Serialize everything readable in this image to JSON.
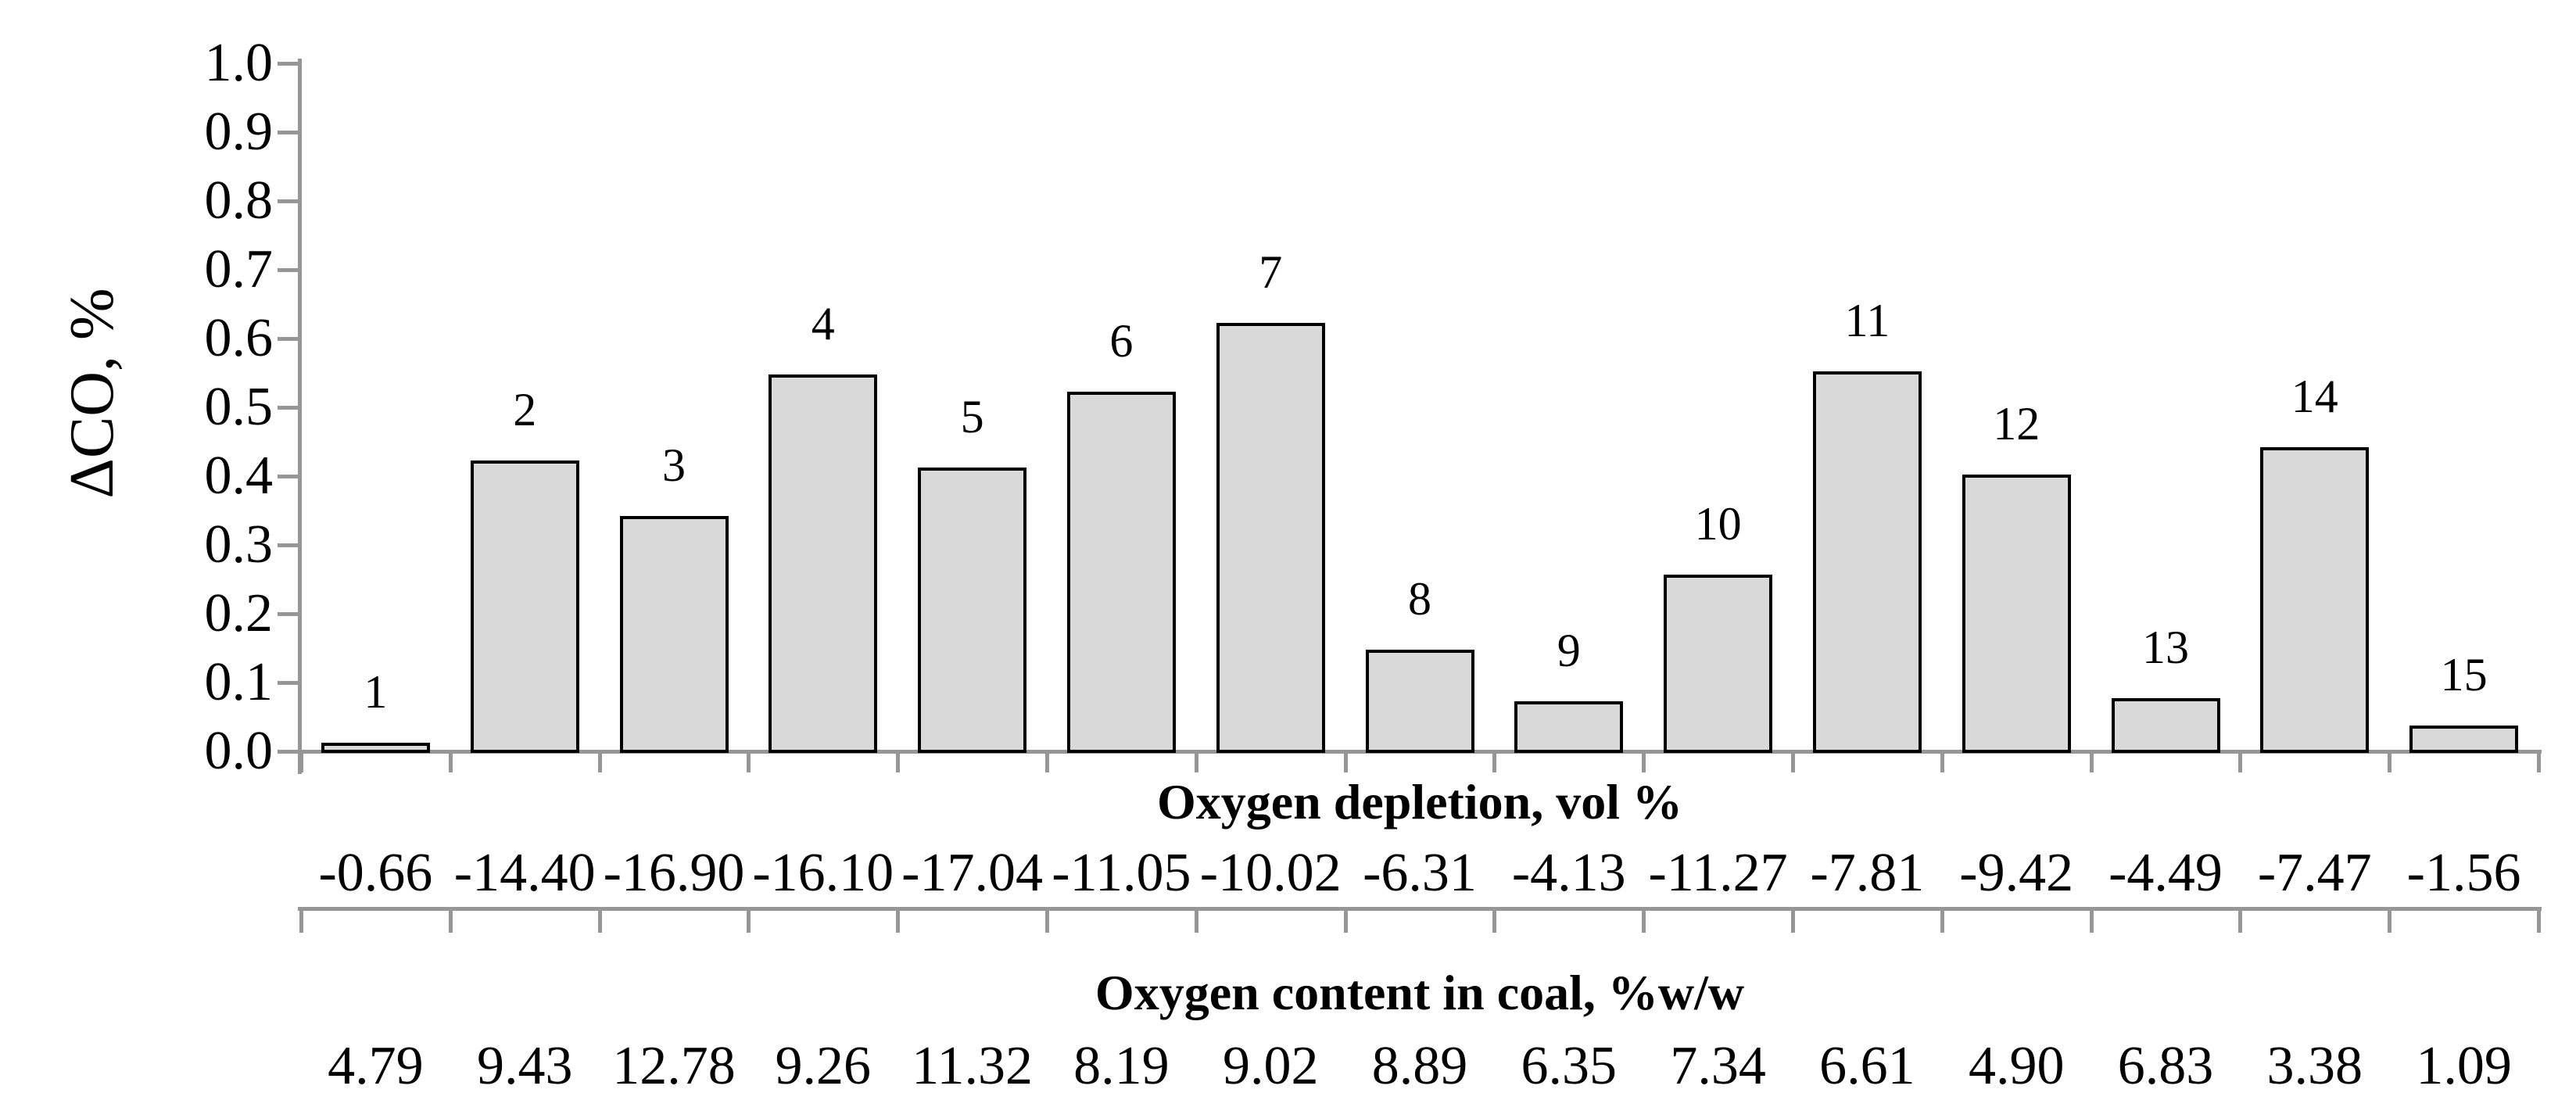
{
  "chart_data": {
    "type": "bar",
    "title": "",
    "ylabel": "ΔCO, %",
    "xlabel": "",
    "ylim": [
      0.0,
      1.0
    ],
    "ytick_step": 0.1,
    "ytick_labels": [
      "0.0",
      "0.1",
      "0.2",
      "0.3",
      "0.4",
      "0.5",
      "0.6",
      "0.7",
      "0.8",
      "0.9",
      "1.0"
    ],
    "grid": false,
    "legend": "none",
    "bar_number_labels": [
      "1",
      "2",
      "3",
      "4",
      "5",
      "6",
      "7",
      "8",
      "9",
      "10",
      "11",
      "12",
      "13",
      "14",
      "15"
    ],
    "values": [
      0.01,
      0.42,
      0.34,
      0.545,
      0.41,
      0.52,
      0.62,
      0.145,
      0.07,
      0.255,
      0.55,
      0.4,
      0.075,
      0.44,
      0.035
    ],
    "x_axis_rows": [
      {
        "title": "Oxygen depletion, vol %",
        "values": [
          "-0.66",
          "-14.40",
          "-16.90",
          "-16.10",
          "-17.04",
          "-11.05",
          "-10.02",
          "-6.31",
          "-4.13",
          "-11.27",
          "-7.81",
          "-9.42",
          "-4.49",
          "-7.47",
          "-1.56"
        ]
      },
      {
        "title": "Oxygen content in coal, %w/w",
        "values": [
          "4.79",
          "9.43",
          "12.78",
          "9.26",
          "11.32",
          "8.19",
          "9.02",
          "8.89",
          "6.35",
          "7.34",
          "6.61",
          "4.90",
          "6.83",
          "3.38",
          "1.09"
        ]
      }
    ],
    "colors": {
      "bar_fill": "#d9d9d9",
      "bar_border": "#000000",
      "axis": "#969696",
      "text": "#000000",
      "background": "#ffffff"
    }
  }
}
